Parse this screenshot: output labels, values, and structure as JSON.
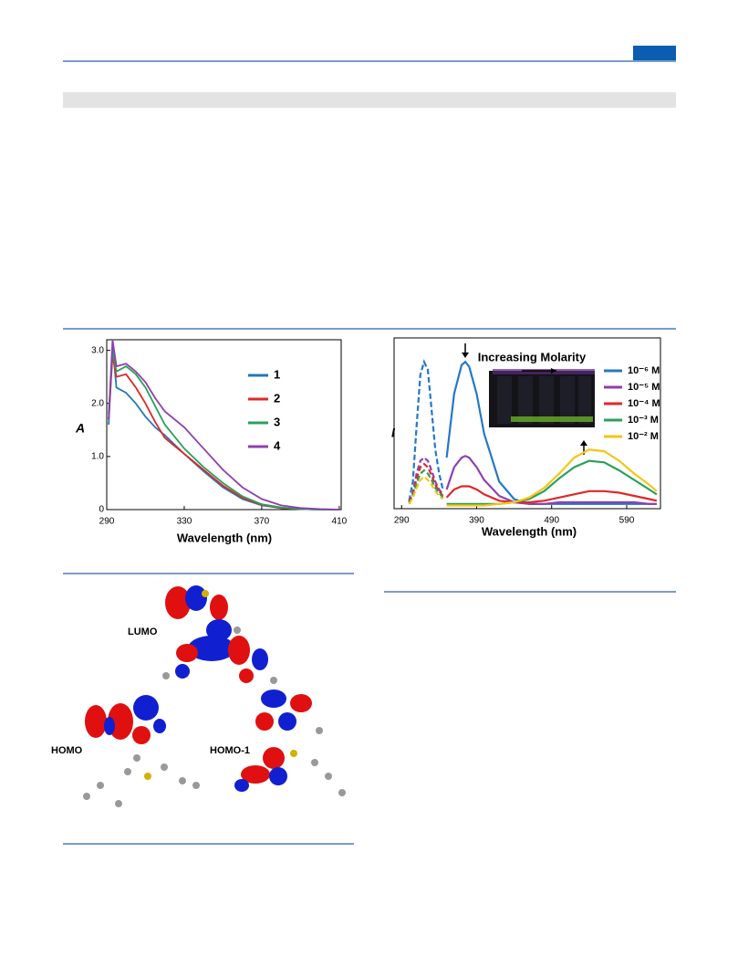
{
  "chart_data": [
    {
      "type": "line",
      "xlabel": "Wavelength (nm)",
      "ylabel": "A",
      "x": [
        291,
        293,
        295,
        300,
        305,
        310,
        315,
        320,
        330,
        340,
        350,
        360,
        370,
        380,
        390,
        400,
        410
      ],
      "xlim": [
        290,
        411
      ],
      "xticks": [
        290,
        330,
        370,
        410
      ],
      "ylim": [
        0,
        3.2
      ],
      "yticks": [
        0,
        {
          "value": 1,
          "label": "1.0"
        },
        {
          "value": 2,
          "label": "2.0"
        },
        {
          "value": 3,
          "label": "3.0"
        }
      ],
      "series": [
        {
          "name": "1",
          "color": "#2478b8",
          "values": [
            1.6,
            3.1,
            2.3,
            2.2,
            2.0,
            1.75,
            1.55,
            1.4,
            1.05,
            0.72,
            0.42,
            0.2,
            0.08,
            0.03,
            0.01,
            0,
            0
          ]
        },
        {
          "name": "2",
          "color": "#e02828",
          "values": [
            1.7,
            2.9,
            2.5,
            2.55,
            2.3,
            2.0,
            1.65,
            1.35,
            1.05,
            0.75,
            0.45,
            0.22,
            0.09,
            0.03,
            0.01,
            0,
            0
          ]
        },
        {
          "name": "3",
          "color": "#2aa05a",
          "values": [
            1.8,
            3.0,
            2.6,
            2.7,
            2.55,
            2.3,
            1.95,
            1.6,
            1.15,
            0.8,
            0.5,
            0.25,
            0.1,
            0.04,
            0.01,
            0,
            0
          ]
        },
        {
          "name": "4",
          "color": "#8e3fb0",
          "values": [
            1.7,
            3.2,
            2.7,
            2.75,
            2.6,
            2.4,
            2.1,
            1.85,
            1.55,
            1.15,
            0.75,
            0.42,
            0.2,
            0.08,
            0.03,
            0.01,
            0
          ]
        }
      ]
    },
    {
      "type": "line",
      "xlabel": "Wavelength (nm)",
      "ylabel": "I",
      "annotation": "Increasing Molarity",
      "x": [
        350,
        360,
        370,
        375,
        380,
        390,
        400,
        420,
        440,
        460,
        480,
        500,
        520,
        540,
        560,
        580,
        600,
        620,
        630
      ],
      "x_excitation": [
        300,
        305,
        310,
        315,
        320,
        325,
        330,
        335,
        340,
        345
      ],
      "xlim": [
        280,
        635
      ],
      "xticks": [
        290,
        390,
        490,
        590
      ],
      "ylim": [
        -0.02,
        1.05
      ],
      "series": [
        {
          "name": "10⁻⁶ M",
          "color": "#2478c8",
          "values": [
            0.3,
            0.7,
            0.88,
            0.9,
            0.87,
            0.7,
            0.45,
            0.15,
            0.04,
            0.01,
            0.01,
            0.01,
            0.01,
            0.01,
            0.01,
            0.01,
            0.01,
            0.01,
            0.01
          ],
          "excitation_values": [
            0.03,
            0.15,
            0.5,
            0.82,
            0.9,
            0.85,
            0.6,
            0.35,
            0.2,
            0.1
          ]
        },
        {
          "name": "10⁻⁵ M",
          "color": "#8e3fb0",
          "values": [
            0.1,
            0.24,
            0.3,
            0.31,
            0.3,
            0.24,
            0.16,
            0.06,
            0.02,
            0.01,
            0.01,
            0.02,
            0.02,
            0.02,
            0.02,
            0.02,
            0.02,
            0.01,
            0.01
          ],
          "excitation_values": [
            0.02,
            0.08,
            0.2,
            0.28,
            0.3,
            0.28,
            0.22,
            0.15,
            0.1,
            0.07
          ]
        },
        {
          "name": "10⁻⁴ M",
          "color": "#e02828",
          "values": [
            0.05,
            0.1,
            0.12,
            0.12,
            0.12,
            0.1,
            0.07,
            0.03,
            0.02,
            0.02,
            0.03,
            0.05,
            0.07,
            0.09,
            0.09,
            0.08,
            0.06,
            0.04,
            0.03
          ],
          "excitation_values": [
            0.02,
            0.07,
            0.17,
            0.24,
            0.26,
            0.24,
            0.19,
            0.13,
            0.09,
            0.06
          ]
        },
        {
          "name": "10⁻³ M",
          "color": "#2aa05a",
          "values": [
            0.01,
            0.01,
            0.01,
            0.01,
            0.01,
            0.01,
            0.01,
            0.01,
            0.02,
            0.04,
            0.09,
            0.17,
            0.24,
            0.28,
            0.27,
            0.22,
            0.16,
            0.1,
            0.07
          ],
          "excitation_values": [
            0.01,
            0.06,
            0.14,
            0.2,
            0.22,
            0.2,
            0.16,
            0.11,
            0.08,
            0.05
          ]
        },
        {
          "name": "10⁻² M",
          "color": "#f5c518",
          "values": [
            0,
            0,
            0,
            0,
            0,
            0,
            0,
            0.01,
            0.02,
            0.05,
            0.11,
            0.2,
            0.3,
            0.35,
            0.34,
            0.28,
            0.2,
            0.13,
            0.09
          ],
          "excitation_values": [
            0.01,
            0.05,
            0.11,
            0.16,
            0.18,
            0.16,
            0.13,
            0.09,
            0.06,
            0.04
          ]
        }
      ]
    }
  ],
  "orbital_figure": {
    "labels": [
      "LUMO",
      "HOMO",
      "HOMO-1"
    ]
  }
}
